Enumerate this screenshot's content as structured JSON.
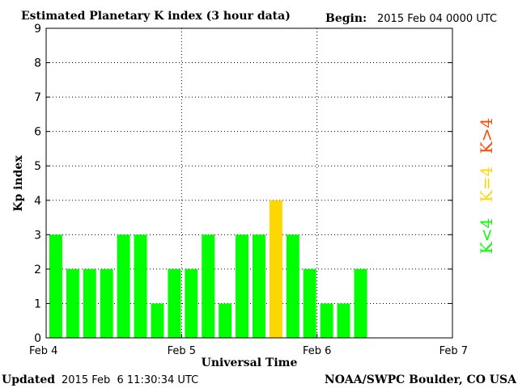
{
  "header": {
    "title": "Estimated Planetary K index (3 hour data)",
    "begin_label": "Begin:",
    "begin_value": "2015 Feb 04 0000 UTC"
  },
  "footer": {
    "updated_label": "Updated",
    "updated_value": "2015 Feb  6 11:30:34 UTC",
    "source": "NOAA/SWPC Boulder, CO USA"
  },
  "legend": {
    "items": [
      {
        "label": "K>4",
        "color": "#ff4500"
      },
      {
        "label": "K=4",
        "color": "#ffd700"
      },
      {
        "label": "K<4",
        "color": "#00ff00"
      }
    ]
  },
  "chart_data": {
    "type": "bar",
    "title": "Estimated Planetary K index (3 hour data)",
    "xlabel": "Universal Time",
    "ylabel": "Kp index",
    "ylim": [
      0,
      9
    ],
    "yticks": [
      "0",
      "1",
      "2",
      "3",
      "4",
      "5",
      "6",
      "7",
      "8",
      "9"
    ],
    "x_tick_labels": [
      "Feb 4",
      "Feb 5",
      "Feb 6",
      "Feb 7"
    ],
    "grid": true,
    "interval_hours": 3,
    "total_slots": 24,
    "values": [
      3,
      2,
      2,
      2,
      3,
      3,
      1,
      2,
      2,
      3,
      1,
      3,
      3,
      4,
      3,
      2,
      1,
      1,
      2
    ],
    "colors": {
      "below4": "#00ff00",
      "equal4": "#ffd700",
      "above4": "#ff4500"
    },
    "legend_placement": "right"
  }
}
